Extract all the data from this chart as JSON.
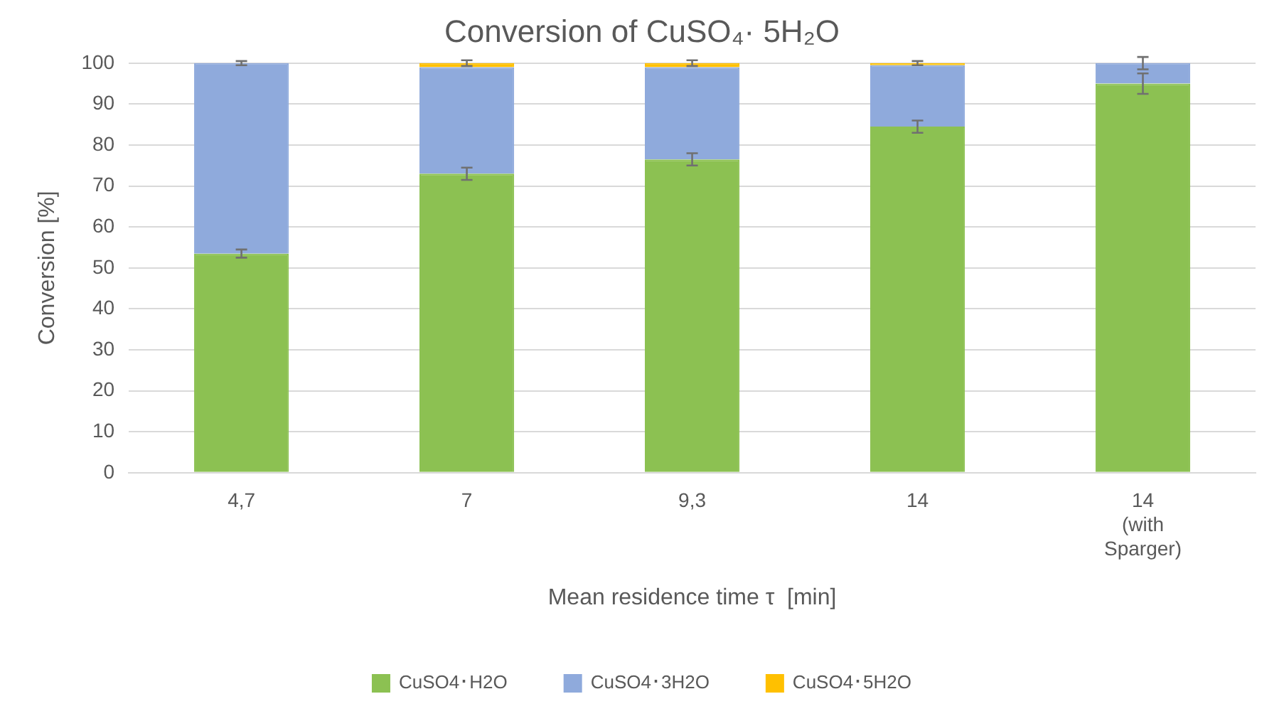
{
  "chart_data": {
    "type": "bar",
    "stacked": true,
    "title": "Conversion of CuSO₄· 5H₂O",
    "xlabel": "Mean residence time τ  [min]",
    "ylabel": "Conversion [%]",
    "categories": [
      "4,7",
      "7",
      "9,3",
      "14",
      "14 (with Sparger)"
    ],
    "series": [
      {
        "name": "CuSO4･H2O",
        "color": "#8cc152",
        "values": [
          53.5,
          73,
          76.5,
          84.5,
          95
        ],
        "errors": [
          1,
          1.5,
          1.5,
          1.5,
          2.5
        ]
      },
      {
        "name": "CuSO4･3H2O",
        "color": "#8faadc",
        "values": [
          46.5,
          26,
          22.5,
          15,
          5
        ],
        "errors": [
          null,
          null,
          null,
          null,
          1.5
        ]
      },
      {
        "name": "CuSO4･5H2O",
        "color": "#ffc000",
        "values": [
          0,
          1,
          1,
          0.5,
          0
        ],
        "errors": [
          0.5,
          0.7,
          0.7,
          0.5,
          null
        ]
      }
    ],
    "ylim": [
      0,
      100
    ],
    "yticks": [
      0,
      10,
      20,
      30,
      40,
      50,
      60,
      70,
      80,
      90,
      100
    ],
    "grid": "y",
    "legend": "bottom"
  }
}
